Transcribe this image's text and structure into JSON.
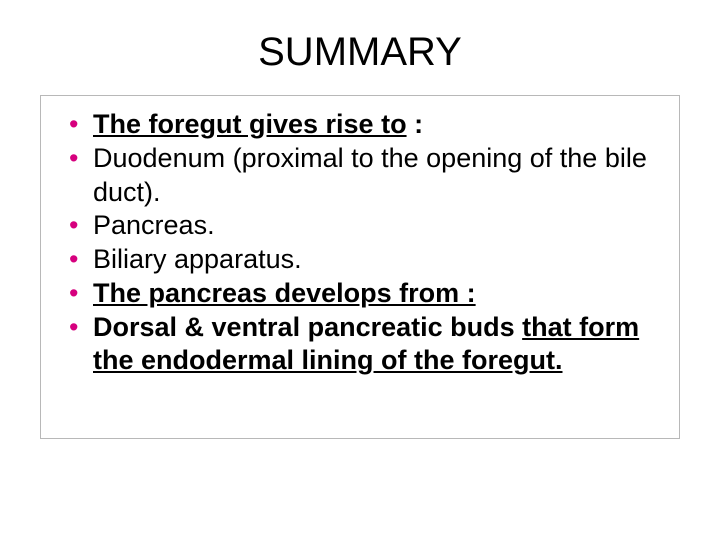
{
  "title": "SUMMARY",
  "colors": {
    "bullet": "#d6007e",
    "text": "#000000",
    "border": "#b8b8b8",
    "background": "#ffffff"
  },
  "typography": {
    "title_fontsize": 40,
    "body_fontsize": 27,
    "font_family": "Arial"
  },
  "bullets": [
    {
      "parts": [
        {
          "text": "The foregut gives rise to",
          "bold": true,
          "underline": true
        },
        {
          "text": " :",
          "bold": true,
          "underline": false
        }
      ]
    },
    {
      "parts": [
        {
          "text": "Duodenum (proximal to the opening of the bile duct).",
          "bold": false,
          "underline": false
        }
      ]
    },
    {
      "parts": [
        {
          "text": "Pancreas.",
          "bold": false,
          "underline": false
        }
      ]
    },
    {
      "parts": [
        {
          "text": "Biliary apparatus.",
          "bold": false,
          "underline": false
        }
      ]
    },
    {
      "parts": [
        {
          "text": "The pancreas develops from :",
          "bold": true,
          "underline": true
        }
      ]
    },
    {
      "parts": [
        {
          "text": "Dorsal & ventral pancreatic buds ",
          "bold": true,
          "underline": false
        },
        {
          "text": "that form the endodermal lining of the foregut.",
          "bold": true,
          "underline": true
        }
      ]
    }
  ]
}
